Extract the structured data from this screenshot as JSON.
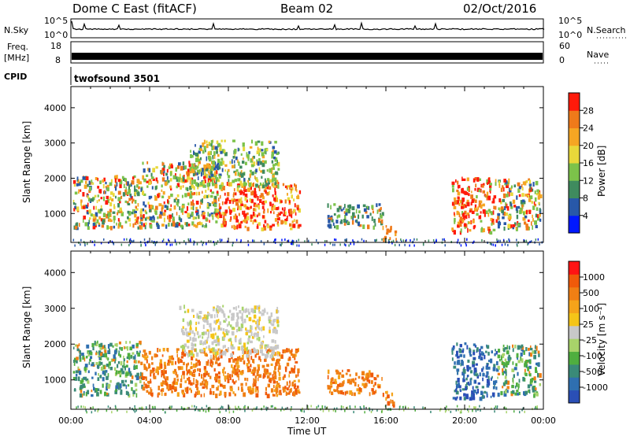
{
  "header": {
    "station": "Dome C East (fitACF)",
    "beam": "Beam 02",
    "date": "02/Oct/2016"
  },
  "status_panels": {
    "nsky_label": "N.Sky",
    "nsky_ticks": [
      "10^5",
      "10^0"
    ],
    "nsearch_label": "N.Search",
    "nsearch_ticks": [
      "10^5",
      "10^0"
    ],
    "freq_label": "Freq.",
    "freq_unit": "[MHz]",
    "freq_ticks": [
      "18",
      "8"
    ],
    "nave_label": "Nave",
    "nave_ticks": [
      "60",
      "0"
    ],
    "cpid_label": "CPID",
    "cpid_value": "twofsound 3501"
  },
  "colors": {
    "power": [
      "#0018ff",
      "#2858a8",
      "#3f8b5e",
      "#7cc24a",
      "#e8d83a",
      "#f5a623",
      "#ef7a1a",
      "#ff1a0a"
    ],
    "velocity": [
      "#2a4fb6",
      "#2f6fb0",
      "#3a8a78",
      "#4fae3f",
      "#a8d36a",
      "#c8c8c8",
      "#f5c518",
      "#f5a31a",
      "#f07f14",
      "#f05a0a",
      "#ff1414"
    ]
  },
  "chart_data": [
    {
      "type": "heatmap",
      "panel": "power",
      "title": "",
      "xlabel": "Time UT",
      "ylabel": "Slant Range [km]",
      "x_ticks": [
        "00:00",
        "04:00",
        "08:00",
        "12:00",
        "16:00",
        "20:00",
        "00:00"
      ],
      "y_ticks": [
        "1000",
        "2000",
        "3000",
        "4000"
      ],
      "xlim_hours": [
        0,
        24
      ],
      "ylim_km": [
        180,
        4600
      ],
      "colorbar_label": "Power [dB]",
      "colorbar_ticks": [
        "4",
        "8",
        "12",
        "16",
        "20",
        "24",
        "28"
      ],
      "scatter_regions": [
        {
          "t0": 0.1,
          "t1": 3.6,
          "r0": 600,
          "r1": 2100,
          "dominant": "mixed green/orange"
        },
        {
          "t0": 3.6,
          "t1": 7.5,
          "r0": 650,
          "r1": 2500,
          "dominant": "green/orange"
        },
        {
          "t0": 7.5,
          "t1": 11.6,
          "r0": 600,
          "r1": 1900,
          "dominant": "red/orange"
        },
        {
          "t0": 6.0,
          "t1": 10.5,
          "r0": 1800,
          "r1": 3100,
          "dominant": "green/yellow"
        },
        {
          "t0": 13.0,
          "t1": 15.8,
          "r0": 650,
          "r1": 1300,
          "dominant": "blue/green"
        },
        {
          "t0": 15.8,
          "t1": 16.5,
          "r0": 300,
          "r1": 700,
          "dominant": "orange"
        },
        {
          "t0": 19.3,
          "t1": 21.6,
          "r0": 500,
          "r1": 2050,
          "dominant": "orange/red"
        },
        {
          "t0": 21.6,
          "t1": 23.8,
          "r0": 600,
          "r1": 2000,
          "dominant": "green/orange"
        }
      ]
    },
    {
      "type": "heatmap",
      "panel": "velocity",
      "title": "",
      "xlabel": "Time UT",
      "ylabel": "Slant Range [km]",
      "x_ticks": [
        "00:00",
        "04:00",
        "08:00",
        "12:00",
        "16:00",
        "20:00",
        "00:00"
      ],
      "y_ticks": [
        "1000",
        "2000",
        "3000",
        "4000"
      ],
      "xlim_hours": [
        0,
        24
      ],
      "ylim_km": [
        180,
        4600
      ],
      "colorbar_label": "Velocity [m s⁻¹]",
      "colorbar_ticks": [
        "1000",
        "500",
        "100",
        "25",
        "-25",
        "-100",
        "-500",
        "-1000"
      ],
      "scatter_regions": [
        {
          "t0": 0.1,
          "t1": 3.6,
          "r0": 600,
          "r1": 2100,
          "dominant": "green/teal"
        },
        {
          "t0": 3.6,
          "t1": 11.6,
          "r0": 600,
          "r1": 1900,
          "dominant": "orange"
        },
        {
          "t0": 5.5,
          "t1": 10.5,
          "r0": 1700,
          "r1": 3100,
          "dominant": "grey"
        },
        {
          "t0": 13.0,
          "t1": 15.8,
          "r0": 650,
          "r1": 1300,
          "dominant": "orange"
        },
        {
          "t0": 15.8,
          "t1": 16.5,
          "r0": 300,
          "r1": 700,
          "dominant": "orange"
        },
        {
          "t0": 19.3,
          "t1": 21.6,
          "r0": 500,
          "r1": 2050,
          "dominant": "blue"
        },
        {
          "t0": 21.6,
          "t1": 23.8,
          "r0": 600,
          "r1": 2000,
          "dominant": "green/teal"
        }
      ]
    }
  ]
}
